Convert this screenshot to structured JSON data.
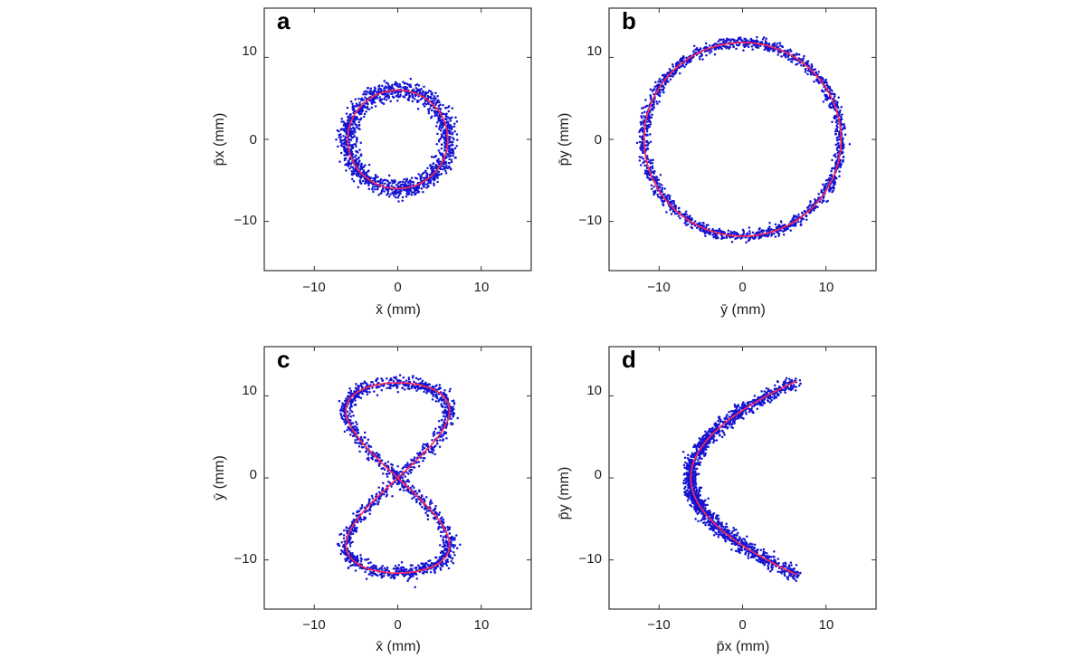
{
  "chart_data": [
    {
      "type": "scatter",
      "panel_label": "a",
      "xlabel": "x̄ (mm)",
      "ylabel": "p̄x (mm)",
      "xlim": [
        -16,
        16
      ],
      "ylim": [
        -16,
        16
      ],
      "xticks": [
        -10,
        0,
        10
      ],
      "yticks": [
        -10,
        0,
        10
      ],
      "xtick_labels": [
        "−10",
        "0",
        "10"
      ],
      "ytick_labels": [
        "−10",
        "0",
        "10"
      ],
      "grid": false,
      "series": [
        {
          "kind": "points",
          "color": "#1414d2",
          "shape": "ring",
          "center": [
            0,
            0
          ],
          "radius_x": 6,
          "radius_y": 6,
          "spread": 1.0,
          "count": 1400
        },
        {
          "kind": "curve",
          "color": "#ff2a55",
          "shape": "ring",
          "center": [
            0,
            0
          ],
          "radius_x": 6,
          "radius_y": 6
        }
      ]
    },
    {
      "type": "scatter",
      "panel_label": "b",
      "xlabel": "ȳ (mm)",
      "ylabel": "p̄y (mm)",
      "xlim": [
        -16,
        16
      ],
      "ylim": [
        -16,
        16
      ],
      "xticks": [
        -10,
        0,
        10
      ],
      "yticks": [
        -10,
        0,
        10
      ],
      "xtick_labels": [
        "−10",
        "0",
        "10"
      ],
      "ytick_labels": [
        "−10",
        "0",
        "10"
      ],
      "grid": false,
      "series": [
        {
          "kind": "points",
          "color": "#1414d2",
          "shape": "ring",
          "center": [
            0,
            0
          ],
          "radius_x": 11.8,
          "radius_y": 11.8,
          "spread": 0.6,
          "count": 1700
        },
        {
          "kind": "curve",
          "color": "#ff2a55",
          "shape": "ring",
          "center": [
            0,
            0
          ],
          "radius_x": 11.8,
          "radius_y": 11.8
        }
      ]
    },
    {
      "type": "scatter",
      "panel_label": "c",
      "xlabel": "x̄ (mm)",
      "ylabel": "ȳ (mm)",
      "xlim": [
        -16,
        16
      ],
      "ylim": [
        -16,
        16
      ],
      "xticks": [
        -10,
        0,
        10
      ],
      "yticks": [
        -10,
        0,
        10
      ],
      "xtick_labels": [
        "−10",
        "0",
        "10"
      ],
      "ytick_labels": [
        "−10",
        "0",
        "10"
      ],
      "grid": false,
      "series": [
        {
          "kind": "points",
          "color": "#1414d2",
          "shape": "figure-eight",
          "amplitude_x": 6.2,
          "amplitude_y": 11.6,
          "spread": 0.75,
          "count": 1700
        },
        {
          "kind": "curve",
          "color": "#ff2a55",
          "shape": "figure-eight",
          "amplitude_x": 6.2,
          "amplitude_y": 11.6
        }
      ]
    },
    {
      "type": "scatter",
      "panel_label": "d",
      "xlabel": "p̄x (mm)",
      "ylabel": "p̄y (mm)",
      "xlim": [
        -16,
        16
      ],
      "ylim": [
        -16,
        16
      ],
      "xticks": [
        -10,
        0,
        10
      ],
      "yticks": [
        -10,
        0,
        10
      ],
      "xtick_labels": [
        "−10",
        "0",
        "10"
      ],
      "ytick_labels": [
        "−10",
        "0",
        "10"
      ],
      "grid": false,
      "series": [
        {
          "kind": "points",
          "color": "#1414d2",
          "shape": "parabola",
          "vertex_x": -6.2,
          "end_x": 6.5,
          "end_y": 11.8,
          "spread": 0.75,
          "count": 1600
        },
        {
          "kind": "curve",
          "color": "#ff2a55",
          "shape": "parabola",
          "vertex_x": -6.2,
          "end_x": 6.5,
          "end_y": 11.8
        }
      ]
    }
  ]
}
